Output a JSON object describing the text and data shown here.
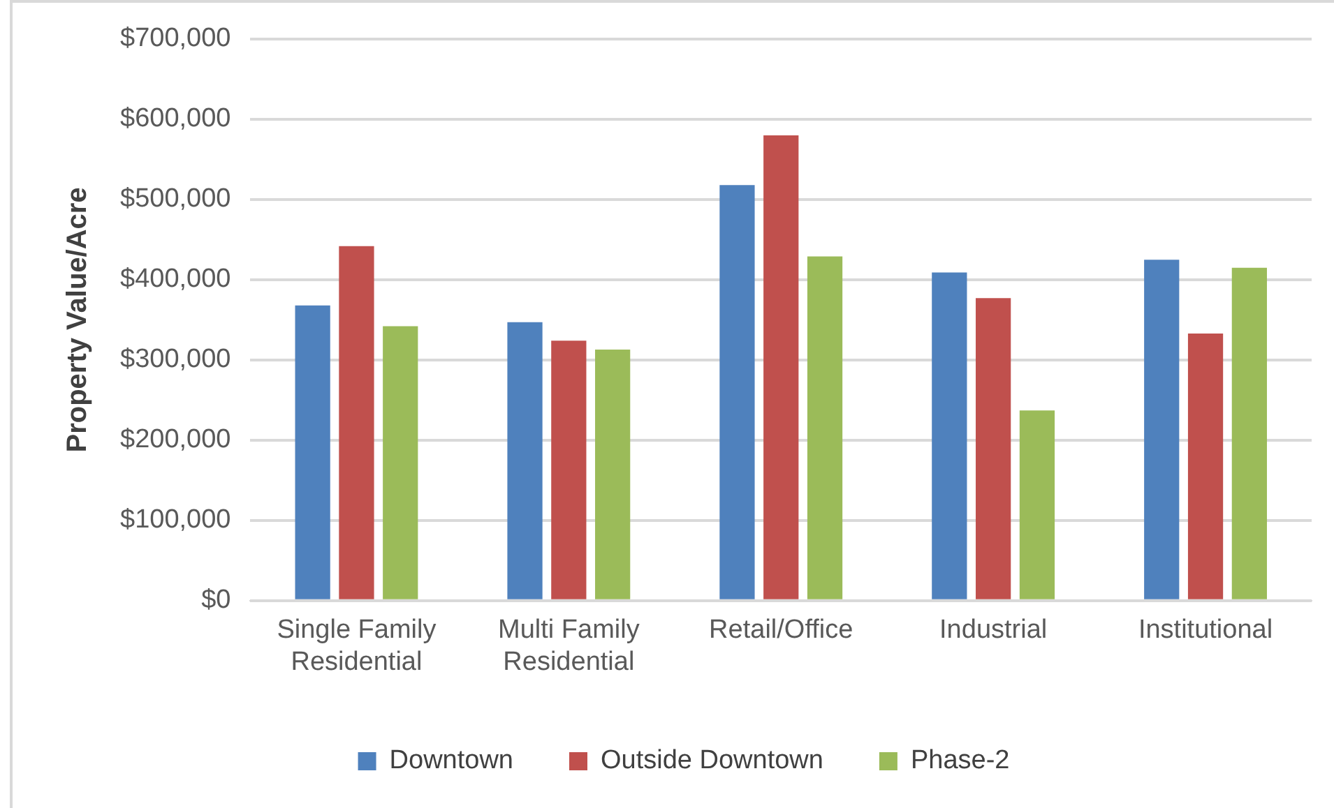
{
  "chart_data": {
    "type": "bar",
    "ylabel": "Property Value/Acre",
    "categories": [
      "Single Family Residential",
      "Multi Family Residential",
      "Retail/Office",
      "Industrial",
      "Institutional"
    ],
    "series": [
      {
        "name": "Downtown",
        "color": "#4f81bd",
        "values": [
          368000,
          347000,
          518000,
          409000,
          425000
        ]
      },
      {
        "name": "Outside Downtown",
        "color": "#c0504d",
        "values": [
          442000,
          324000,
          580000,
          377000,
          333000
        ]
      },
      {
        "name": "Phase-2",
        "color": "#9bbb59",
        "values": [
          342000,
          313000,
          429000,
          237000,
          415000
        ]
      }
    ],
    "ylim": [
      0,
      700000
    ],
    "yticks": [
      {
        "value": 0,
        "label": "$0"
      },
      {
        "value": 100000,
        "label": "$100,000"
      },
      {
        "value": 200000,
        "label": "$200,000"
      },
      {
        "value": 300000,
        "label": "$300,000"
      },
      {
        "value": 400000,
        "label": "$400,000"
      },
      {
        "value": 500000,
        "label": "$500,000"
      },
      {
        "value": 600000,
        "label": "$600,000"
      },
      {
        "value": 700000,
        "label": "$700,000"
      }
    ],
    "grid": "y",
    "legend": "bottom"
  }
}
